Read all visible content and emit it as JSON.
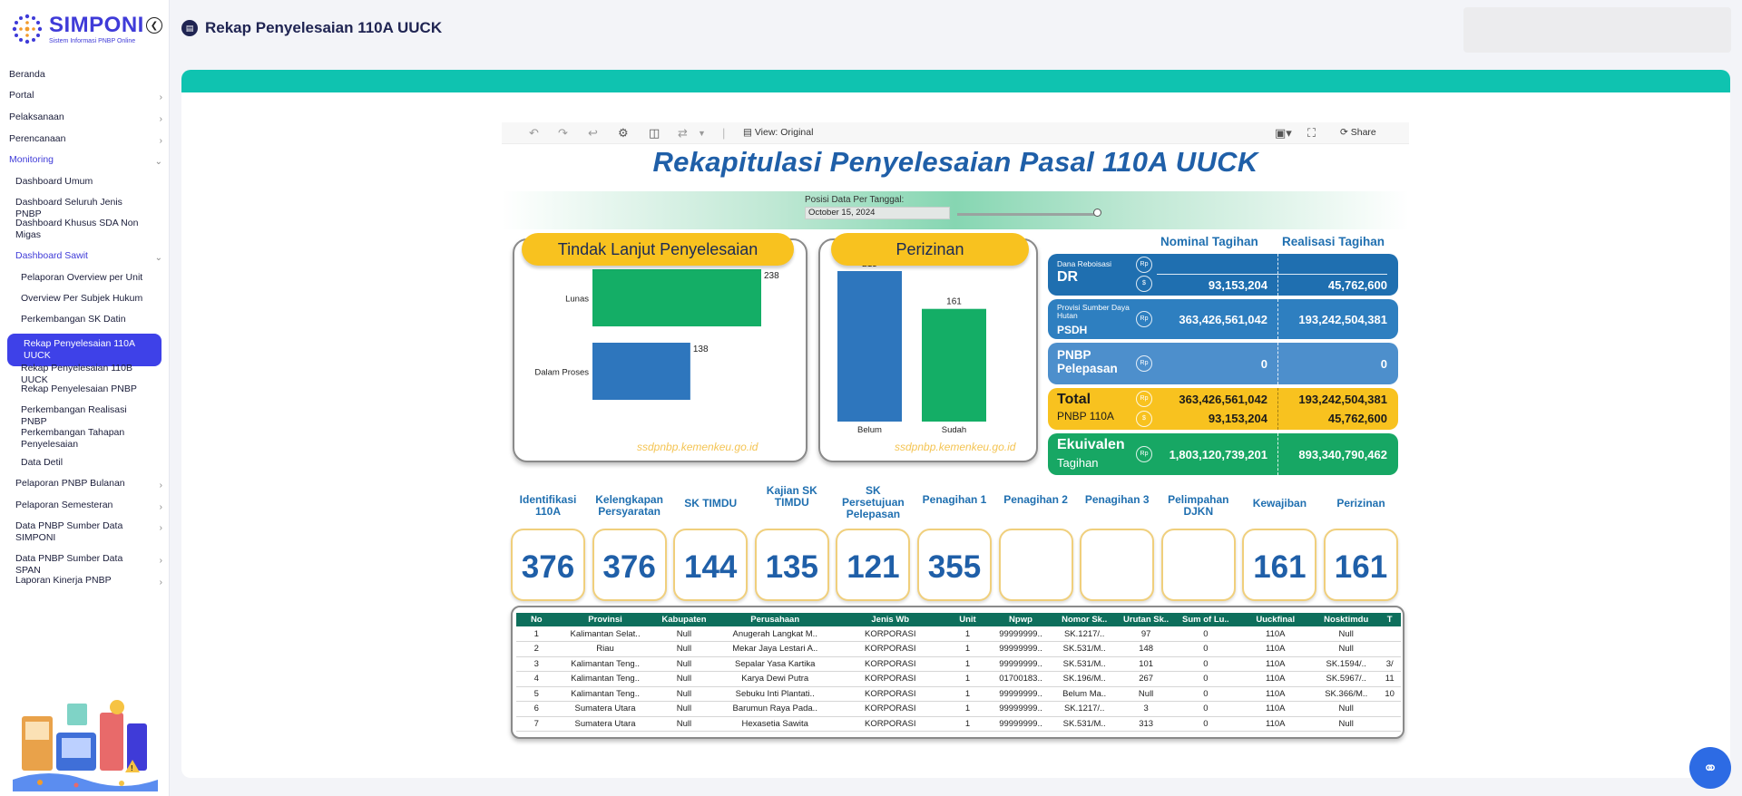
{
  "app": {
    "name": "SIMPONI",
    "subtitle": "Sistem Informasi PNBP Online"
  },
  "page_title": "Rekap Penyelesaian 110A UUCK",
  "sidebar": {
    "items": [
      {
        "label": "Beranda",
        "level": 0,
        "has_children": false
      },
      {
        "label": "Portal",
        "level": 0,
        "has_children": true
      },
      {
        "label": "Pelaksanaan",
        "level": 0,
        "has_children": true
      },
      {
        "label": "Perencanaan",
        "level": 0,
        "has_children": true
      },
      {
        "label": "Monitoring",
        "level": 0,
        "has_children": true,
        "expanded": true
      },
      {
        "label": "Dashboard Umum",
        "level": 1
      },
      {
        "label": "Dashboard Seluruh Jenis PNBP",
        "level": 1
      },
      {
        "label": "Dashboard Khusus SDA Non Migas",
        "level": 1
      },
      {
        "label": "Dashboard Sawit",
        "level": 1,
        "has_children": true,
        "expanded": true
      },
      {
        "label": "Pelaporan Overview per Unit",
        "level": 2
      },
      {
        "label": "Overview Per Subjek Hukum",
        "level": 2
      },
      {
        "label": "Perkembangan SK Datin",
        "level": 2
      },
      {
        "label": "Rekap Penyelesaian 110A UUCK",
        "level": 2,
        "active": true
      },
      {
        "label": "Rekap Penyelesaian 110B UUCK",
        "level": 2
      },
      {
        "label": "Rekap Penyelesaian PNBP",
        "level": 2
      },
      {
        "label": "Perkembangan Realisasi PNBP",
        "level": 2
      },
      {
        "label": "Perkembangan Tahapan Penyelesaian",
        "level": 2
      },
      {
        "label": "Data Detil",
        "level": 2
      },
      {
        "label": "Pelaporan PNBP Bulanan",
        "level": 1,
        "has_children": true
      },
      {
        "label": "Pelaporan Semesteran",
        "level": 1,
        "has_children": true
      },
      {
        "label": "Data PNBP Sumber Data SIMPONI",
        "level": 1,
        "has_children": true
      },
      {
        "label": "Data PNBP Sumber Data SPAN",
        "level": 1,
        "has_children": true
      },
      {
        "label": "Laporan Kinerja PNBP",
        "level": 1,
        "has_children": true
      }
    ]
  },
  "toolbar": {
    "view_label": "View: Original",
    "share_label": "Share"
  },
  "dashboard": {
    "title": "Rekapitulasi Penyelesaian Pasal 110A UUCK",
    "date_label": "Posisi Data Per Tanggal:",
    "date_value": "October 15, 2024",
    "watermark": "ssdpnbp.kemenkeu.go.id",
    "tindak_lanjut": {
      "title": "Tindak Lanjut Penyelesaian"
    },
    "perizinan": {
      "title": "Perizinan"
    },
    "finance": {
      "col_nominal": "Nominal Tagihan",
      "col_realisasi": "Realisasi Tagihan",
      "dr_small": "Dana Reboisasi",
      "dr_big": "DR",
      "dr_nominal": "93,153,204",
      "dr_realisasi": "45,762,600",
      "psdh_small": "Provisi Sumber Daya Hutan",
      "psdh_big": "PSDH",
      "psdh_nominal": "363,426,561,042",
      "psdh_realisasi": "193,242,504,381",
      "pel_big": "PNBP Pelepasan",
      "pel_nominal": "0",
      "pel_realisasi": "0",
      "total_big": "Total",
      "total_small": "PNBP 110A",
      "total_nominal_rp": "363,426,561,042",
      "total_realisasi_rp": "193,242,504,381",
      "total_nominal_usd": "93,153,204",
      "total_realisasi_usd": "45,762,600",
      "ekv_big": "Ekuivalen",
      "ekv_small": "Tagihan",
      "ekv_nominal": "1,803,120,739,201",
      "ekv_realisasi": "893,340,790,462",
      "rp_symbol": "Rp",
      "usd_symbol": "$"
    },
    "kpis": [
      {
        "label": "Identifikasi 110A",
        "value": "376"
      },
      {
        "label": "Kelengkapan Persyaratan",
        "value": "376"
      },
      {
        "label": "SK TIMDU",
        "value": "144"
      },
      {
        "label": "Kajian SK TIMDU",
        "value": "135"
      },
      {
        "label": "SK Persetujuan Pelepasan",
        "value": "121"
      },
      {
        "label": "Penagihan 1",
        "value": "355"
      },
      {
        "label": "Penagihan 2",
        "value": ""
      },
      {
        "label": "Penagihan 3",
        "value": ""
      },
      {
        "label": "Pelimpahan DJKN",
        "value": ""
      },
      {
        "label": "Kewajiban",
        "value": "161"
      },
      {
        "label": "Perizinan",
        "value": "161"
      }
    ],
    "table": {
      "columns": [
        "No",
        "Provinsi",
        "Kabupaten",
        "Perusahaan",
        "Jenis Wb",
        "Unit",
        "Npwp",
        "Nomor Sk..",
        "Urutan Sk..",
        "Sum of Lu..",
        "Uuckfinal",
        "Nosktimdu",
        "T"
      ],
      "rows": [
        [
          "1",
          "Kalimantan Selat..",
          "Null",
          "Anugerah Langkat M..",
          "KORPORASI",
          "1",
          "99999999..",
          "SK.1217/..",
          "97",
          "0",
          "110A",
          "Null",
          ""
        ],
        [
          "2",
          "Riau",
          "Null",
          "Mekar Jaya Lestari A..",
          "KORPORASI",
          "1",
          "99999999..",
          "SK.531/M..",
          "148",
          "0",
          "110A",
          "Null",
          ""
        ],
        [
          "3",
          "Kalimantan Teng..",
          "Null",
          "Sepalar Yasa Kartika",
          "KORPORASI",
          "1",
          "99999999..",
          "SK.531/M..",
          "101",
          "0",
          "110A",
          "SK.1594/..",
          "3/"
        ],
        [
          "4",
          "Kalimantan Teng..",
          "Null",
          "Karya Dewi Putra",
          "KORPORASI",
          "1",
          "01700183..",
          "SK.196/M..",
          "267",
          "0",
          "110A",
          "SK.5967/..",
          "11"
        ],
        [
          "5",
          "Kalimantan Teng..",
          "Null",
          "Sebuku Inti Plantati..",
          "KORPORASI",
          "1",
          "99999999..",
          "Belum Ma..",
          "Null",
          "0",
          "110A",
          "SK.366/M..",
          "10"
        ],
        [
          "6",
          "Sumatera Utara",
          "Null",
          "Barumun Raya Pada..",
          "KORPORASI",
          "1",
          "99999999..",
          "SK.1217/..",
          "3",
          "0",
          "110A",
          "Null",
          ""
        ],
        [
          "7",
          "Sumatera Utara",
          "Null",
          "Hexasetia Sawita",
          "KORPORASI",
          "1",
          "99999999..",
          "SK.531/M..",
          "313",
          "0",
          "110A",
          "Null",
          ""
        ]
      ]
    }
  },
  "chart_data": [
    {
      "type": "bar",
      "orientation": "horizontal",
      "title": "Tindak Lanjut Penyelesaian",
      "categories": [
        "Lunas",
        "Dalam Proses"
      ],
      "values": [
        238,
        138
      ],
      "colors": [
        "#14ae66",
        "#2e76bd"
      ]
    },
    {
      "type": "bar",
      "orientation": "vertical",
      "title": "Perizinan",
      "categories": [
        "Belum",
        "Sudah"
      ],
      "values": [
        215,
        161
      ],
      "colors": [
        "#2e76bd",
        "#14ae66"
      ]
    }
  ],
  "colors": {
    "brand": "#3f3bd8",
    "active_nav": "#3e41e8",
    "teal_band": "#0fc3b0",
    "title_blue": "#1f5fa8",
    "panel_yellow": "#f8c21f",
    "green": "#14ae66",
    "blue": "#2e76bd"
  }
}
